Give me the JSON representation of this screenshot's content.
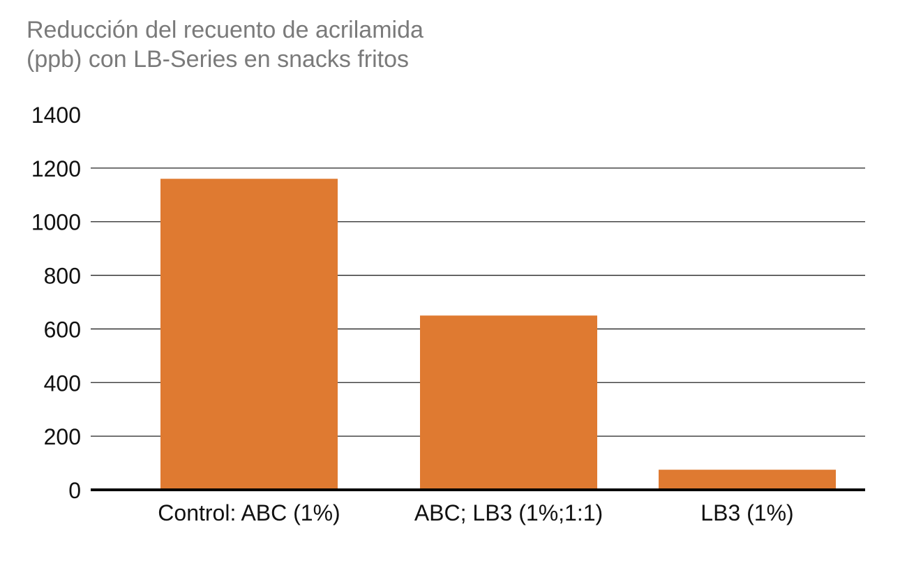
{
  "chart_data": {
    "type": "bar",
    "title_lines": [
      "Reducción del recuento de acrilamida",
      "(ppb) con LB-Series en snacks fritos"
    ],
    "categories": [
      "Control: ABC (1%)",
      "ABC; LB3 (1%;1:1)",
      "LB3 (1%)"
    ],
    "values": [
      1160,
      650,
      75
    ],
    "ylim": [
      0,
      1400
    ],
    "yticks": [
      0,
      200,
      400,
      600,
      800,
      1000,
      1200,
      1400
    ],
    "grid": true,
    "bar_color": "#df7a31"
  }
}
